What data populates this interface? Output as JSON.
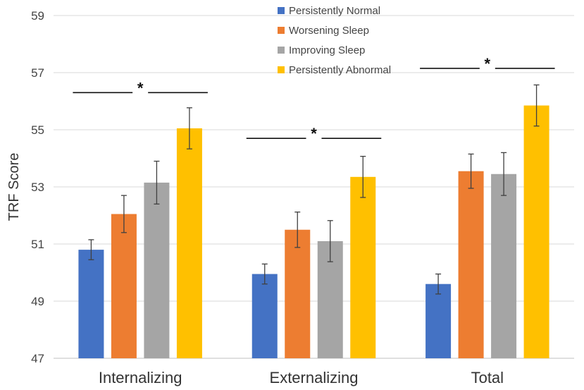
{
  "chart_data": {
    "type": "bar",
    "title": "",
    "xlabel": "",
    "ylabel": "TRF Score",
    "ylim": [
      47,
      59
    ],
    "yticks": [
      47,
      49,
      51,
      53,
      55,
      57,
      59
    ],
    "grid": true,
    "legend_position": "top-center",
    "categories": [
      "Internalizing",
      "Externalizing",
      "Total"
    ],
    "series": [
      {
        "name": "Persistently Normal",
        "color": "#4472C4",
        "values": [
          50.8,
          49.95,
          49.6
        ],
        "errors": [
          0.35,
          0.35,
          0.35
        ]
      },
      {
        "name": "Worsening Sleep",
        "color": "#ED7D31",
        "values": [
          52.05,
          51.5,
          53.55
        ],
        "errors": [
          0.65,
          0.62,
          0.6
        ]
      },
      {
        "name": "Improving Sleep",
        "color": "#A5A5A5",
        "values": [
          53.15,
          51.1,
          53.45
        ],
        "errors": [
          0.75,
          0.72,
          0.75
        ]
      },
      {
        "name": "Persistently Abnormal",
        "color": "#FFC000",
        "values": [
          55.05,
          53.35,
          55.85
        ],
        "errors": [
          0.72,
          0.72,
          0.72
        ]
      }
    ],
    "annotations": [
      {
        "category": "Internalizing",
        "text": "*",
        "y": 56.3
      },
      {
        "category": "Externalizing",
        "text": "*",
        "y": 54.7
      },
      {
        "category": "Total",
        "text": "*",
        "y": 57.15
      }
    ]
  }
}
